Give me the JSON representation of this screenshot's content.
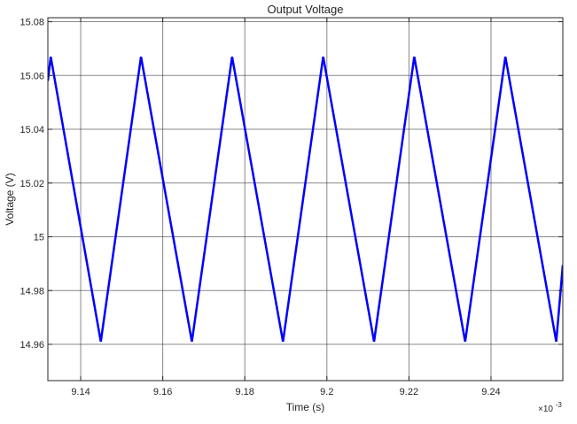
{
  "chart_data": {
    "type": "line",
    "title": "Output Voltage",
    "xlabel": "Time (s)",
    "ylabel": "Voltage (V)",
    "x_exponent_label": "×10",
    "x_exponent_power": "-3",
    "xlim": [
      9.132,
      9.2575
    ],
    "ylim": [
      14.9465,
      15.0815
    ],
    "x_ticks": [
      9.14,
      9.16,
      9.18,
      9.2,
      9.22,
      9.24
    ],
    "x_tick_labels": [
      "9.14",
      "9.16",
      "9.18",
      "9.2",
      "9.22",
      "9.24"
    ],
    "y_ticks": [
      14.96,
      14.98,
      15.0,
      15.02,
      15.04,
      15.06,
      15.08
    ],
    "y_tick_labels": [
      "14.96",
      "14.98",
      "15",
      "15.02",
      "15.04",
      "15.06",
      "15.08"
    ],
    "grid": true,
    "series": [
      {
        "color": "#0000ff",
        "x": [
          9.132,
          9.1327,
          9.1449,
          9.1547,
          9.1671,
          9.1769,
          9.1893,
          9.1991,
          9.2115,
          9.2213,
          9.2337,
          9.2435,
          9.2559,
          9.2575
        ],
        "y": [
          15.058,
          15.067,
          14.961,
          15.067,
          14.961,
          15.067,
          14.961,
          15.067,
          14.961,
          15.067,
          14.961,
          15.067,
          14.961,
          14.9895
        ]
      }
    ]
  }
}
